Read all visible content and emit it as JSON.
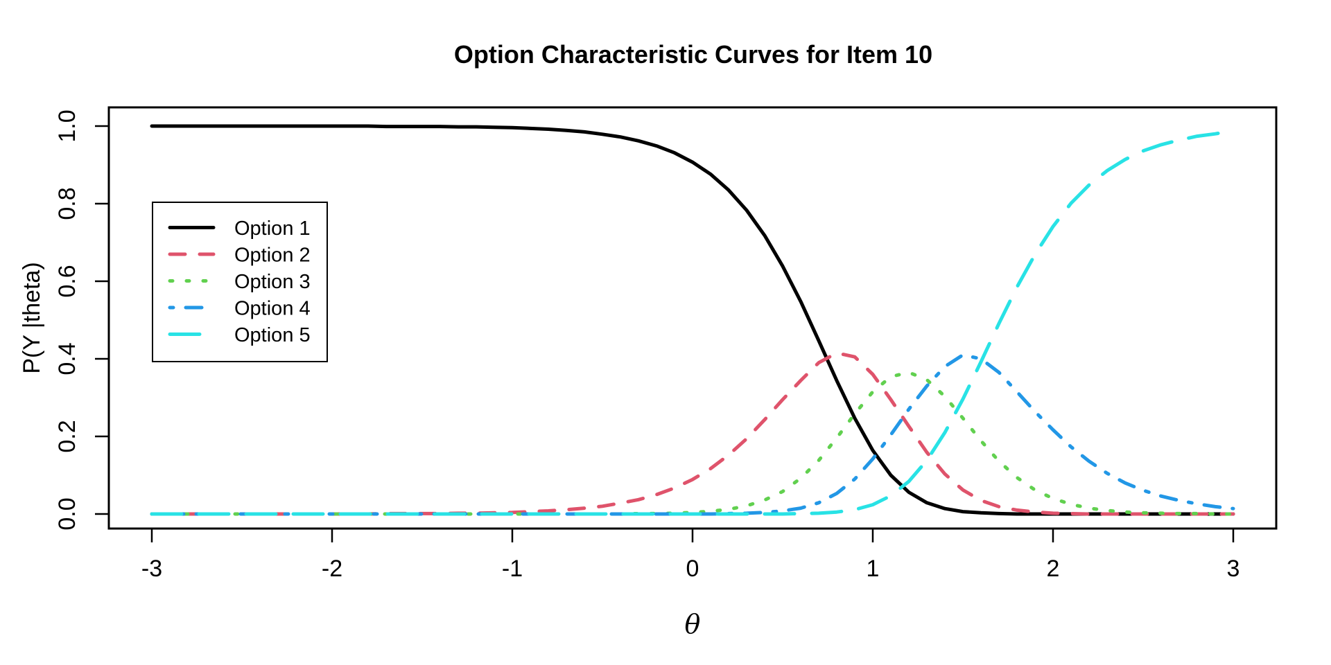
{
  "title": "Option Characteristic Curves for Item 10",
  "x_axis": {
    "label": "θ",
    "tick_labels": [
      "-3",
      "-2",
      "-1",
      "0",
      "1",
      "2",
      "3"
    ],
    "tick_values": [
      -3,
      -2,
      -1,
      0,
      1,
      2,
      3
    ]
  },
  "y_axis": {
    "label": "P(Y |theta)",
    "tick_labels": [
      "0.0",
      "0.2",
      "0.4",
      "0.6",
      "0.8",
      "1.0"
    ],
    "tick_values": [
      0.0,
      0.2,
      0.4,
      0.6,
      0.8,
      1.0
    ]
  },
  "legend": {
    "items": [
      {
        "label": "Option 1",
        "color": "#000000",
        "linetype": "solid"
      },
      {
        "label": "Option 2",
        "color": "#DF536B",
        "linetype": "dashed"
      },
      {
        "label": "Option 3",
        "color": "#61D04F",
        "linetype": "dotted"
      },
      {
        "label": "Option 4",
        "color": "#2297E6",
        "linetype": "dotdash"
      },
      {
        "label": "Option 5",
        "color": "#28E2E5",
        "linetype": "longdash"
      }
    ]
  },
  "chart_data": {
    "type": "line",
    "title": "Option Characteristic Curves for Item 10",
    "xlabel": "θ",
    "ylabel": "P(Y |theta)",
    "xlim": [
      -3,
      3
    ],
    "ylim": [
      0,
      1
    ],
    "grid": false,
    "legend_position": "inside-left-middle",
    "x": [
      -3.0,
      -2.9,
      -2.8,
      -2.7,
      -2.6,
      -2.5,
      -2.4,
      -2.3,
      -2.2,
      -2.1,
      -2.0,
      -1.9,
      -1.8,
      -1.7,
      -1.6,
      -1.5,
      -1.4,
      -1.3,
      -1.2,
      -1.1,
      -1.0,
      -0.9,
      -0.8,
      -0.7,
      -0.6,
      -0.5,
      -0.4,
      -0.3,
      -0.2,
      -0.1,
      0.0,
      0.1,
      0.2,
      0.3,
      0.4,
      0.5,
      0.6,
      0.7,
      0.8,
      0.9,
      1.0,
      1.1,
      1.2,
      1.3,
      1.4,
      1.5,
      1.6,
      1.7,
      1.8,
      1.9,
      2.0,
      2.1,
      2.2,
      2.3,
      2.4,
      2.5,
      2.6,
      2.7,
      2.8,
      2.9,
      3.0
    ],
    "series": [
      {
        "name": "Option 1",
        "color": "#000000",
        "linetype": "solid",
        "values": [
          1.0,
          1.0,
          1.0,
          1.0,
          1.0,
          1.0,
          1.0,
          1.0,
          1.0,
          1.0,
          1.0,
          1.0,
          1.0,
          0.999,
          0.999,
          0.999,
          0.999,
          0.998,
          0.998,
          0.997,
          0.996,
          0.994,
          0.992,
          0.989,
          0.985,
          0.979,
          0.972,
          0.962,
          0.949,
          0.931,
          0.907,
          0.876,
          0.835,
          0.783,
          0.718,
          0.639,
          0.548,
          0.447,
          0.344,
          0.247,
          0.164,
          0.1,
          0.056,
          0.029,
          0.014,
          0.006,
          0.003,
          0.001,
          0.0,
          0.0,
          0.0,
          0.0,
          0.0,
          0.0,
          0.0,
          0.0,
          0.0,
          0.0,
          0.0,
          0.0,
          0.0
        ]
      },
      {
        "name": "Option 2",
        "color": "#DF536B",
        "linetype": "dashed",
        "values": [
          0.0,
          0.0,
          0.0,
          0.0,
          0.0,
          0.0,
          0.0,
          0.0,
          0.0,
          0.0,
          0.0,
          0.0,
          0.0,
          0.001,
          0.001,
          0.001,
          0.001,
          0.002,
          0.002,
          0.003,
          0.004,
          0.006,
          0.008,
          0.011,
          0.015,
          0.02,
          0.028,
          0.037,
          0.05,
          0.067,
          0.089,
          0.117,
          0.152,
          0.194,
          0.243,
          0.295,
          0.344,
          0.39,
          0.415,
          0.405,
          0.36,
          0.295,
          0.226,
          0.159,
          0.103,
          0.062,
          0.035,
          0.019,
          0.01,
          0.005,
          0.002,
          0.001,
          0.0,
          0.0,
          0.0,
          0.0,
          0.0,
          0.0,
          0.0,
          0.0,
          0.0
        ]
      },
      {
        "name": "Option 3",
        "color": "#61D04F",
        "linetype": "dotted",
        "values": [
          0.0,
          0.0,
          0.0,
          0.0,
          0.0,
          0.0,
          0.0,
          0.0,
          0.0,
          0.0,
          0.0,
          0.0,
          0.0,
          0.0,
          0.0,
          0.0,
          0.0,
          0.0,
          0.0,
          0.0,
          0.0,
          0.0,
          0.0,
          0.0,
          0.0,
          0.0,
          0.0,
          0.001,
          0.001,
          0.002,
          0.004,
          0.007,
          0.012,
          0.021,
          0.036,
          0.058,
          0.092,
          0.138,
          0.196,
          0.258,
          0.315,
          0.354,
          0.365,
          0.346,
          0.303,
          0.247,
          0.189,
          0.136,
          0.094,
          0.062,
          0.04,
          0.025,
          0.015,
          0.009,
          0.005,
          0.003,
          0.002,
          0.001,
          0.001,
          0.0,
          0.0
        ]
      },
      {
        "name": "Option 4",
        "color": "#2297E6",
        "linetype": "dotdash",
        "values": [
          0.0,
          0.0,
          0.0,
          0.0,
          0.0,
          0.0,
          0.0,
          0.0,
          0.0,
          0.0,
          0.0,
          0.0,
          0.0,
          0.0,
          0.0,
          0.0,
          0.0,
          0.0,
          0.0,
          0.0,
          0.0,
          0.0,
          0.0,
          0.0,
          0.0,
          0.0,
          0.0,
          0.0,
          0.0,
          0.0,
          0.0,
          0.0,
          0.001,
          0.002,
          0.004,
          0.008,
          0.015,
          0.029,
          0.053,
          0.09,
          0.142,
          0.204,
          0.27,
          0.33,
          0.38,
          0.41,
          0.4,
          0.365,
          0.315,
          0.264,
          0.217,
          0.173,
          0.136,
          0.105,
          0.08,
          0.061,
          0.046,
          0.035,
          0.026,
          0.019,
          0.014
        ]
      },
      {
        "name": "Option 5",
        "color": "#28E2E5",
        "linetype": "longdash",
        "values": [
          0.0,
          0.0,
          0.0,
          0.0,
          0.0,
          0.0,
          0.0,
          0.0,
          0.0,
          0.0,
          0.0,
          0.0,
          0.0,
          0.0,
          0.0,
          0.0,
          0.0,
          0.0,
          0.0,
          0.0,
          0.0,
          0.0,
          0.0,
          0.0,
          0.0,
          0.0,
          0.0,
          0.0,
          0.0,
          0.0,
          0.0,
          0.0,
          0.0,
          0.0,
          0.0,
          0.0,
          0.001,
          0.002,
          0.005,
          0.011,
          0.024,
          0.047,
          0.084,
          0.138,
          0.21,
          0.296,
          0.392,
          0.491,
          0.585,
          0.669,
          0.741,
          0.801,
          0.848,
          0.885,
          0.914,
          0.936,
          0.952,
          0.964,
          0.974,
          0.98,
          0.988
        ]
      }
    ]
  }
}
